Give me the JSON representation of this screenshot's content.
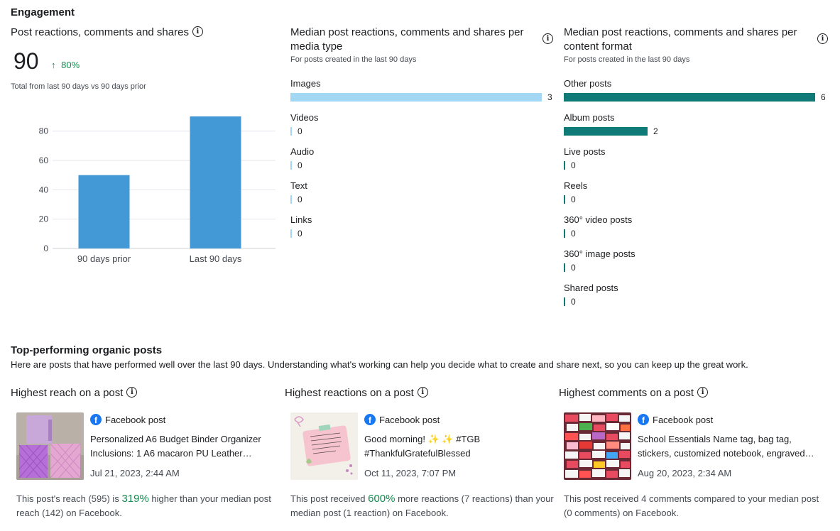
{
  "engagement": {
    "title": "Engagement",
    "total_card": {
      "title": "Post reactions, comments and shares",
      "value": "90",
      "delta_arrow": "↑",
      "delta": "80%",
      "subtitle": "Total from last 90 days vs 90 days prior"
    },
    "media_card": {
      "title": "Median post reactions, comments and shares per media type",
      "subtitle": "For posts created in the last 90 days",
      "items": [
        {
          "label": "Images",
          "value": "3"
        },
        {
          "label": "Videos",
          "value": "0"
        },
        {
          "label": "Audio",
          "value": "0"
        },
        {
          "label": "Text",
          "value": "0"
        },
        {
          "label": "Links",
          "value": "0"
        }
      ]
    },
    "format_card": {
      "title": "Median post reactions, comments and shares per content format",
      "subtitle": "For posts created in the last 90 days",
      "items": [
        {
          "label": "Other posts",
          "value": "6"
        },
        {
          "label": "Album posts",
          "value": "2"
        },
        {
          "label": "Live posts",
          "value": "0"
        },
        {
          "label": "Reels",
          "value": "0"
        },
        {
          "label": "360° video posts",
          "value": "0"
        },
        {
          "label": "360° image posts",
          "value": "0"
        },
        {
          "label": "Shared posts",
          "value": "0"
        }
      ]
    }
  },
  "chart_data": [
    {
      "type": "bar",
      "title": "Post reactions, comments and shares",
      "categories": [
        "90 days prior",
        "Last 90 days"
      ],
      "values": [
        50,
        90
      ],
      "ylim": [
        0,
        90
      ],
      "yticks": [
        "0",
        "20",
        "40",
        "60",
        "80"
      ],
      "grid": true,
      "color": "#4299d6"
    },
    {
      "type": "bar",
      "title": "Median post reactions, comments and shares per media type",
      "categories": [
        "Images",
        "Videos",
        "Audio",
        "Text",
        "Links"
      ],
      "values": [
        3,
        0,
        0,
        0,
        0
      ],
      "color": "#a3d8f4"
    },
    {
      "type": "bar",
      "title": "Median post reactions, comments and shares per content format",
      "categories": [
        "Other posts",
        "Album posts",
        "Live posts",
        "Reels",
        "360° video posts",
        "360° image posts",
        "Shared posts"
      ],
      "values": [
        6,
        2,
        0,
        0,
        0,
        0,
        0
      ],
      "color": "#0f7a78"
    }
  ],
  "top_posts": {
    "title": "Top-performing organic posts",
    "description": "Here are posts that have performed well over the last 90 days. Understanding what's working can help you decide what to create and share next, so you can keep up the great work.",
    "cards": [
      {
        "title": "Highest reach on a post",
        "post_type": "Facebook post",
        "text": "Personalized A6 Budget Binder Organizer Inclusions: 1 A6 macaron PU Leather…",
        "date": "Jul 21, 2023, 2:44 AM",
        "summary_pre": "This post's reach (595) is ",
        "summary_highlight": "319%",
        "summary_post": " higher than your median post reach (142) on Facebook."
      },
      {
        "title": "Highest reactions on a post",
        "post_type": "Facebook post",
        "text": "Good morning! ✨ ✨ #TGB #ThankfulGratefulBlessed",
        "date": "Oct 11, 2023, 7:07 PM",
        "summary_pre": "This post received ",
        "summary_highlight": "600%",
        "summary_post": " more reactions (7 reactions) than your median post (1 reaction) on Facebook."
      },
      {
        "title": "Highest comments on a post",
        "post_type": "Facebook post",
        "text": "School Essentials Name tag, bag tag, stickers, customized notebook, engraved…",
        "date": "Aug 20, 2023, 2:34 AM",
        "summary_pre": "This post received 4 comments compared to your median post (0 comments) on Facebook.",
        "summary_highlight": "",
        "summary_post": ""
      }
    ]
  },
  "colors": {
    "accent_green": "#128c4d",
    "chart_blue": "#4299d6",
    "media_blue": "#a3d8f4",
    "format_teal": "#0f7a78"
  }
}
